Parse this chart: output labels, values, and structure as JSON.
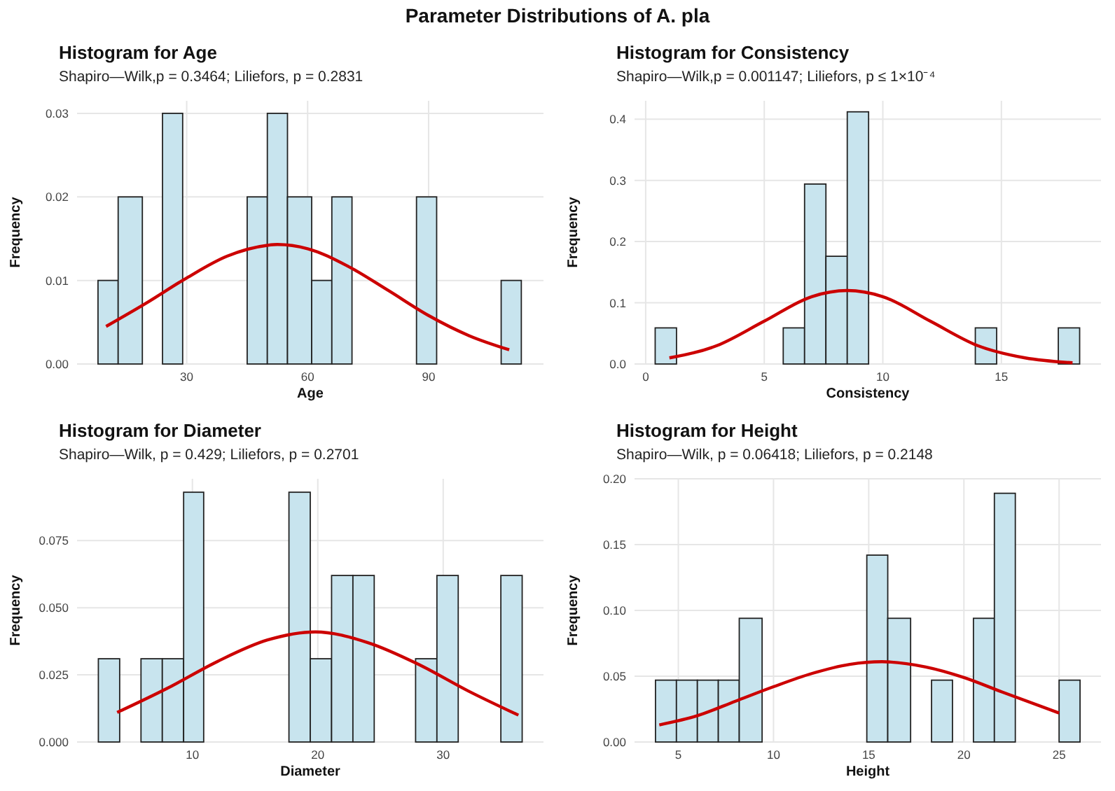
{
  "chart_data": [
    {
      "type": "histogram",
      "title": "Histogram for Age",
      "subtitle": "Shapiro—Wilk,p = 0.3464; Liliefors, p = 0.2831",
      "xlabel": "Age",
      "ylabel": "Frequency",
      "annotations": [
        "Parameter Distributions of A. pla"
      ],
      "bins": [
        8,
        13,
        19,
        24,
        29,
        45,
        50,
        55,
        61,
        66,
        71,
        87,
        92,
        108,
        113
      ],
      "series": [
        {
          "color": "#c8e4ee",
          "values": [
            0.01,
            0.02,
            0,
            0.03,
            0,
            0.02,
            0.03,
            0.02,
            0.01,
            0.02,
            0,
            0.02,
            0,
            0.01
          ]
        },
        {
          "type": "line",
          "color": "#cc0000",
          "x": [
            10,
            20,
            30,
            40,
            50,
            52.5,
            60,
            70,
            80,
            90,
            100,
            110
          ],
          "values": [
            0.0045,
            0.0073,
            0.0103,
            0.0129,
            0.0142,
            0.0143,
            0.0138,
            0.0117,
            0.0088,
            0.0058,
            0.0034,
            0.0017
          ]
        }
      ],
      "xlim": [
        2.8,
        118.5
      ],
      "xticks": [
        30,
        60,
        90
      ],
      "ylim": [
        0,
        0.0315
      ],
      "yticks": [
        {
          "value": 0,
          "label": "0.00"
        },
        {
          "value": 0.01,
          "label": "0.01"
        },
        {
          "value": 0.02,
          "label": "0.02"
        },
        {
          "value": 0.03,
          "label": "0.03"
        }
      ],
      "grid": true
    },
    {
      "type": "histogram",
      "title": "Histogram for Consistency",
      "subtitle": "Shapiro—Wilk,p = 0.001147; Liliefors, p ≤ 1×10⁻⁴",
      "xlabel": "Consistency",
      "ylabel": "Frequency",
      "bins": [
        0.4,
        1.3,
        5.8,
        6.7,
        7.6,
        8.5,
        9.4,
        13.9,
        14.8,
        17.4,
        18.3
      ],
      "series": [
        {
          "color": "#c8e4ee",
          "values": [
            0.059,
            0,
            0.059,
            0.294,
            0.176,
            0.412,
            0,
            0.059,
            0,
            0.059
          ]
        },
        {
          "type": "line",
          "color": "#cc0000",
          "x": [
            1,
            3,
            5,
            7,
            8.5,
            10,
            12,
            14,
            16,
            18
          ],
          "values": [
            0.01,
            0.03,
            0.07,
            0.11,
            0.12,
            0.11,
            0.07,
            0.03,
            0.01,
            0.002
          ]
        }
      ],
      "xlim": [
        -0.47,
        19.2
      ],
      "xticks": [
        0,
        5,
        10,
        15
      ],
      "ylim": [
        0,
        0.43
      ],
      "yticks": [
        {
          "value": 0,
          "label": "0.0"
        },
        0.1,
        0.2,
        0.3,
        0.4
      ],
      "grid": true
    },
    {
      "type": "histogram",
      "title": "Histogram for Diameter",
      "subtitle": "Shapiro—Wilk, p = 0.429; Liliefors, p = 0.2701",
      "xlabel": "Diameter",
      "ylabel": "Frequency",
      "bins": [
        2.5,
        4.2,
        5.9,
        7.6,
        9.3,
        10.9,
        17.7,
        19.4,
        21.1,
        22.8,
        24.5,
        27.8,
        29.5,
        31.2,
        34.6,
        36.3
      ],
      "series": [
        {
          "color": "#c8e4ee",
          "values": [
            0.031,
            0,
            0.031,
            0.031,
            0.093,
            0,
            0.093,
            0.031,
            0.062,
            0.062,
            0,
            0.031,
            0.062,
            0,
            0.062
          ]
        },
        {
          "type": "line",
          "color": "#cc0000",
          "x": [
            4,
            8,
            12,
            16,
            19.8,
            24,
            28,
            32,
            36
          ],
          "values": [
            0.011,
            0.02,
            0.03,
            0.038,
            0.041,
            0.037,
            0.029,
            0.019,
            0.01
          ]
        }
      ],
      "xlim": [
        0.8,
        38
      ],
      "xticks": [
        10,
        20,
        30
      ],
      "ylim": [
        0,
        0.098
      ],
      "yticks": [
        {
          "value": 0,
          "label": "0.000"
        },
        {
          "value": 0.025,
          "label": "0.025"
        },
        {
          "value": 0.05,
          "label": "0.050"
        },
        {
          "value": 0.075,
          "label": "0.075"
        }
      ],
      "grid": true
    },
    {
      "type": "histogram",
      "title": "Histogram for Height",
      "subtitle": "Shapiro—Wilk, p = 0.06418; Liliefors, p = 0.2148",
      "xlabel": "Height",
      "ylabel": "Frequency",
      "bins": [
        3.8,
        4.9,
        6.0,
        7.1,
        8.2,
        9.4,
        14.9,
        16.0,
        17.2,
        18.3,
        19.4,
        20.5,
        21.6,
        22.7,
        25.0,
        26.1
      ],
      "series": [
        {
          "color": "#c8e4ee",
          "values": [
            0.047,
            0.047,
            0.047,
            0.047,
            0.094,
            0,
            0.142,
            0.094,
            0,
            0.047,
            0,
            0.094,
            0.189,
            0,
            0.047
          ]
        },
        {
          "type": "line",
          "color": "#cc0000",
          "x": [
            4,
            6,
            8,
            10,
            12,
            14,
            15.7,
            18,
            20,
            22,
            25
          ],
          "values": [
            0.013,
            0.02,
            0.031,
            0.042,
            0.052,
            0.059,
            0.061,
            0.057,
            0.049,
            0.038,
            0.022
          ]
        }
      ],
      "xlim": [
        2.7,
        27.2
      ],
      "xticks": [
        5,
        10,
        15,
        20,
        25
      ],
      "ylim": [
        0,
        0.2
      ],
      "yticks": [
        {
          "value": 0,
          "label": "0.00"
        },
        {
          "value": 0.05,
          "label": "0.05"
        },
        {
          "value": 0.1,
          "label": "0.10"
        },
        {
          "value": 0.15,
          "label": "0.15"
        },
        {
          "value": 0.2,
          "label": "0.20"
        }
      ],
      "grid": true
    }
  ]
}
